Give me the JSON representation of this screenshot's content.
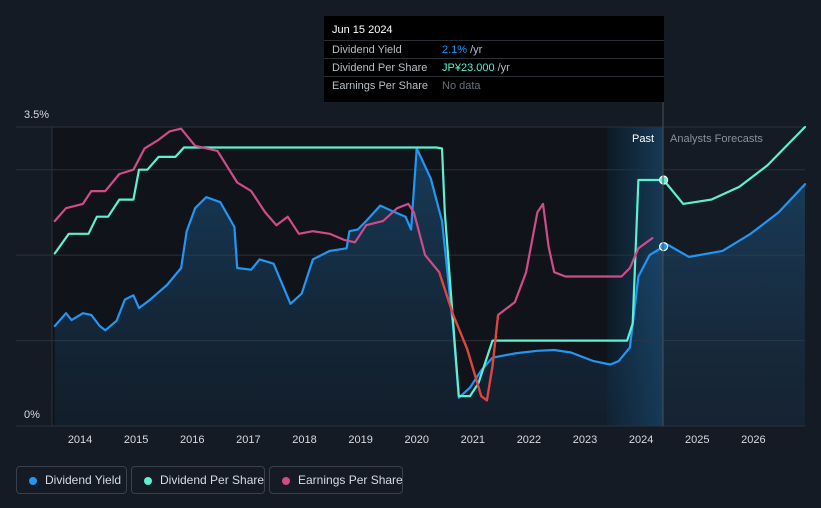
{
  "tooltip": {
    "date": "Jun 15 2024",
    "rows": [
      {
        "label": "Dividend Yield",
        "value": "2.1%",
        "unit": "/yr",
        "color": "#2196f3"
      },
      {
        "label": "Dividend Per Share",
        "value": "JP¥23.000",
        "unit": "/yr",
        "color": "#5ef0d0"
      },
      {
        "label": "Earnings Per Share",
        "value": "No data",
        "unit": "",
        "color": "#6b7079"
      }
    ]
  },
  "legend": [
    {
      "label": "Dividend Yield",
      "color": "#2196f3"
    },
    {
      "label": "Dividend Per Share",
      "color": "#5ef0d0"
    },
    {
      "label": "Earnings Per Share",
      "color": "#d04b8a"
    }
  ],
  "chart_data": {
    "type": "line",
    "title": "",
    "xlabel": "",
    "ylabel": "",
    "ylim": [
      0,
      3.5
    ],
    "xlim": [
      2013.55,
      2026.97
    ],
    "y_ticks": [
      "0%",
      "3.5%"
    ],
    "x_ticks": [
      "2014",
      "2015",
      "2016",
      "2017",
      "2018",
      "2019",
      "2020",
      "2021",
      "2022",
      "2023",
      "2024",
      "2025",
      "2026"
    ],
    "forecast_start": 2023.45,
    "past_end": 2024.45,
    "section_labels": {
      "past": "Past",
      "forecast": "Analysts Forecasts"
    },
    "series": [
      {
        "name": "Dividend Yield",
        "color": "#2196f3",
        "fill": true,
        "unit": "%",
        "points": [
          [
            2013.6,
            1.17
          ],
          [
            2013.8,
            1.32
          ],
          [
            2013.9,
            1.24
          ],
          [
            2014.1,
            1.32
          ],
          [
            2014.25,
            1.3
          ],
          [
            2014.4,
            1.17
          ],
          [
            2014.5,
            1.12
          ],
          [
            2014.7,
            1.23
          ],
          [
            2014.85,
            1.48
          ],
          [
            2015.0,
            1.53
          ],
          [
            2015.1,
            1.38
          ],
          [
            2015.3,
            1.48
          ],
          [
            2015.6,
            1.65
          ],
          [
            2015.85,
            1.85
          ],
          [
            2015.95,
            2.28
          ],
          [
            2016.1,
            2.55
          ],
          [
            2016.3,
            2.68
          ],
          [
            2016.55,
            2.62
          ],
          [
            2016.8,
            2.33
          ],
          [
            2016.85,
            1.85
          ],
          [
            2017.1,
            1.83
          ],
          [
            2017.25,
            1.95
          ],
          [
            2017.5,
            1.9
          ],
          [
            2017.8,
            1.43
          ],
          [
            2018.0,
            1.55
          ],
          [
            2018.2,
            1.95
          ],
          [
            2018.5,
            2.05
          ],
          [
            2018.8,
            2.08
          ],
          [
            2018.85,
            2.28
          ],
          [
            2019.0,
            2.3
          ],
          [
            2019.15,
            2.4
          ],
          [
            2019.4,
            2.58
          ],
          [
            2019.6,
            2.52
          ],
          [
            2019.85,
            2.45
          ],
          [
            2019.95,
            2.3
          ],
          [
            2020.05,
            3.25
          ],
          [
            2020.3,
            2.9
          ],
          [
            2020.5,
            2.4
          ],
          [
            2020.7,
            1.15
          ],
          [
            2020.8,
            0.33
          ],
          [
            2021.0,
            0.45
          ],
          [
            2021.2,
            0.65
          ],
          [
            2021.4,
            0.8
          ],
          [
            2021.8,
            0.85
          ],
          [
            2022.2,
            0.88
          ],
          [
            2022.5,
            0.89
          ],
          [
            2022.8,
            0.86
          ],
          [
            2023.2,
            0.76
          ],
          [
            2023.5,
            0.72
          ],
          [
            2023.65,
            0.76
          ],
          [
            2023.85,
            0.92
          ],
          [
            2024.0,
            1.75
          ],
          [
            2024.2,
            2.0
          ],
          [
            2024.45,
            2.1
          ],
          [
            2024.5,
            2.13
          ],
          [
            2024.9,
            1.98
          ],
          [
            2025.5,
            2.05
          ],
          [
            2026.0,
            2.25
          ],
          [
            2026.5,
            2.5
          ],
          [
            2026.97,
            2.83
          ]
        ]
      },
      {
        "name": "Dividend Per Share",
        "color": "#5ef0d0",
        "fill": false,
        "unit": "JP¥",
        "points": [
          [
            2013.6,
            2.02
          ],
          [
            2013.85,
            2.25
          ],
          [
            2014.2,
            2.25
          ],
          [
            2014.35,
            2.45
          ],
          [
            2014.55,
            2.45
          ],
          [
            2014.75,
            2.65
          ],
          [
            2015.0,
            2.65
          ],
          [
            2015.1,
            3.0
          ],
          [
            2015.25,
            3.0
          ],
          [
            2015.45,
            3.15
          ],
          [
            2015.75,
            3.15
          ],
          [
            2015.9,
            3.26
          ],
          [
            2016.2,
            3.26
          ],
          [
            2017.0,
            3.26
          ],
          [
            2018.0,
            3.26
          ],
          [
            2019.0,
            3.26
          ],
          [
            2020.0,
            3.26
          ],
          [
            2020.4,
            3.26
          ],
          [
            2020.5,
            3.25
          ],
          [
            2020.55,
            2.5
          ],
          [
            2020.7,
            1.2
          ],
          [
            2020.8,
            0.35
          ],
          [
            2021.0,
            0.35
          ],
          [
            2021.15,
            0.5
          ],
          [
            2021.35,
            0.9
          ],
          [
            2021.4,
            1.0
          ],
          [
            2022.0,
            1.0
          ],
          [
            2023.0,
            1.0
          ],
          [
            2023.8,
            1.0
          ],
          [
            2023.9,
            1.2
          ],
          [
            2024.0,
            2.88
          ],
          [
            2024.45,
            2.88
          ],
          [
            2024.8,
            2.6
          ],
          [
            2025.3,
            2.65
          ],
          [
            2025.8,
            2.8
          ],
          [
            2026.3,
            3.05
          ],
          [
            2026.97,
            3.5
          ]
        ]
      },
      {
        "name": "Earnings Per Share",
        "color": "#d04b8a",
        "fill": false,
        "unit": "JP¥",
        "points": [
          [
            2013.6,
            2.4
          ],
          [
            2013.8,
            2.55
          ],
          [
            2014.1,
            2.6
          ],
          [
            2014.25,
            2.75
          ],
          [
            2014.5,
            2.75
          ],
          [
            2014.75,
            2.95
          ],
          [
            2015.0,
            3.0
          ],
          [
            2015.2,
            3.25
          ],
          [
            2015.45,
            3.35
          ],
          [
            2015.65,
            3.45
          ],
          [
            2015.85,
            3.48
          ],
          [
            2016.1,
            3.28
          ],
          [
            2016.5,
            3.22
          ],
          [
            2016.85,
            2.85
          ],
          [
            2017.1,
            2.75
          ],
          [
            2017.35,
            2.5
          ],
          [
            2017.55,
            2.35
          ],
          [
            2017.75,
            2.45
          ],
          [
            2017.95,
            2.25
          ],
          [
            2018.2,
            2.28
          ],
          [
            2018.5,
            2.25
          ],
          [
            2018.75,
            2.18
          ],
          [
            2018.95,
            2.15
          ],
          [
            2019.15,
            2.35
          ],
          [
            2019.45,
            2.4
          ],
          [
            2019.7,
            2.55
          ],
          [
            2019.9,
            2.6
          ],
          [
            2020.0,
            2.5
          ],
          [
            2020.2,
            2.0
          ],
          [
            2020.45,
            1.8
          ],
          [
            2020.7,
            1.3
          ],
          [
            2020.95,
            0.9
          ],
          [
            2021.2,
            0.35
          ],
          [
            2021.3,
            0.3
          ],
          [
            2021.4,
            0.7
          ],
          [
            2021.5,
            1.3
          ],
          [
            2021.8,
            1.45
          ],
          [
            2022.0,
            1.8
          ],
          [
            2022.2,
            2.5
          ],
          [
            2022.3,
            2.6
          ],
          [
            2022.4,
            2.1
          ],
          [
            2022.5,
            1.8
          ],
          [
            2022.7,
            1.75
          ],
          [
            2023.0,
            1.75
          ],
          [
            2023.45,
            1.75
          ],
          [
            2023.7,
            1.75
          ],
          [
            2023.85,
            1.85
          ],
          [
            2024.0,
            2.08
          ],
          [
            2024.25,
            2.2
          ]
        ]
      }
    ],
    "markers": [
      {
        "series": "Dividend Per Share",
        "x": 2024.45,
        "y": 2.88
      },
      {
        "series": "Dividend Yield",
        "x": 2024.45,
        "y": 2.1
      }
    ]
  }
}
